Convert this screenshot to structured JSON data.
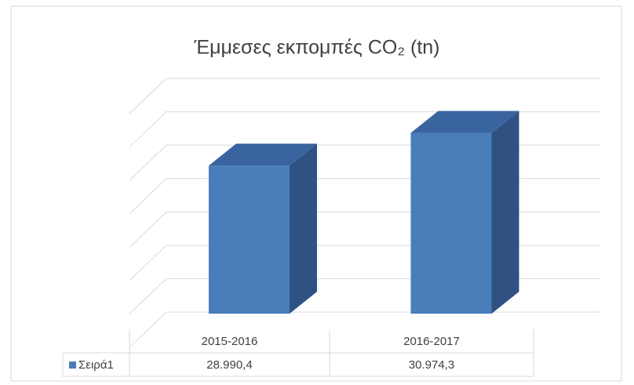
{
  "chart_data": {
    "type": "bar3d",
    "title": "Έμμεσες εκπομπές CO₂ (tn)",
    "categories": [
      "2015-2016",
      "2016-2017"
    ],
    "series": [
      {
        "name": "Σειρά1",
        "color": "#4a7ebb",
        "values": [
          28990.4,
          30974.3
        ],
        "value_labels": [
          "28.990,4",
          "30.974,3"
        ]
      }
    ],
    "ylim": [
      20000,
      34000
    ],
    "yticks": [
      20000,
      22000,
      24000,
      26000,
      28000,
      30000,
      32000,
      34000
    ],
    "grid": true,
    "data_table": true
  }
}
